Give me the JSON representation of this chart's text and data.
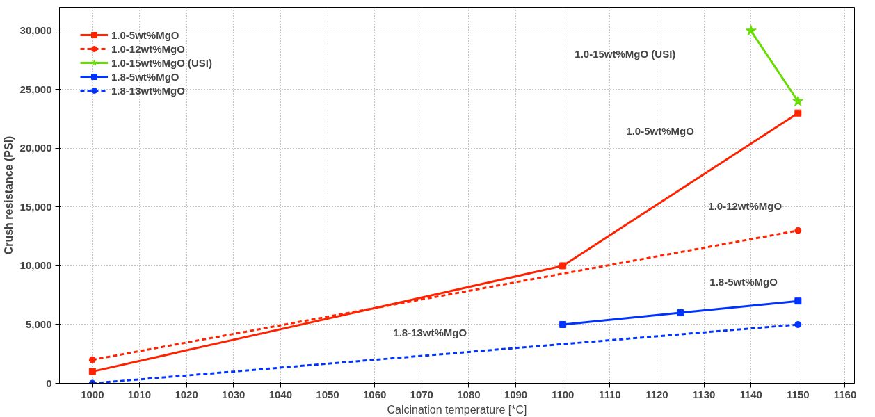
{
  "chart_data": {
    "type": "line",
    "xlabel": "Calcination temperature [*C]",
    "ylabel": "Crush resistance (PSI)",
    "xlim": [
      993,
      1162
    ],
    "ylim": [
      0,
      32000
    ],
    "xticks": [
      {
        "value": 1000,
        "label": "1000"
      },
      {
        "value": 1010,
        "label": "1010"
      },
      {
        "value": 1020,
        "label": "1020"
      },
      {
        "value": 1030,
        "label": "1030"
      },
      {
        "value": 1040,
        "label": "1040"
      },
      {
        "value": 1050,
        "label": "1050"
      },
      {
        "value": 1060,
        "label": "1060"
      },
      {
        "value": 1070,
        "label": "1070"
      },
      {
        "value": 1080,
        "label": "1080"
      },
      {
        "value": 1090,
        "label": "1090"
      },
      {
        "value": 1100,
        "label": "1100"
      },
      {
        "value": 1110,
        "label": "1110"
      },
      {
        "value": 1120,
        "label": "1120"
      },
      {
        "value": 1130,
        "label": "1130"
      },
      {
        "value": 1140,
        "label": "1140"
      },
      {
        "value": 1150,
        "label": "1150"
      },
      {
        "value": 1160,
        "label": "1160"
      }
    ],
    "yticks": [
      {
        "value": 0,
        "label": "0"
      },
      {
        "value": 5000,
        "label": "5,000"
      },
      {
        "value": 10000,
        "label": "10,000"
      },
      {
        "value": 15000,
        "label": "15,000"
      },
      {
        "value": 20000,
        "label": "20,000"
      },
      {
        "value": 25000,
        "label": "25,000"
      },
      {
        "value": 30000,
        "label": "30,000"
      }
    ],
    "grid": true,
    "legend": "top left",
    "series": [
      {
        "name": "1.0-5wt%MgO",
        "color": "#ff2200",
        "x": [
          1000,
          1100,
          1150
        ],
        "values": [
          1000,
          10000,
          23000
        ],
        "marker": "square",
        "line_style": "solid"
      },
      {
        "name": "1.0-12wt%MgO",
        "color": "#ff2200",
        "x": [
          1000,
          1150
        ],
        "values": [
          2000,
          13000
        ],
        "marker": "circle",
        "line_style": "dashed"
      },
      {
        "name": "1.0-15wt%MgO (USI)",
        "color": "#66dd00",
        "x": [
          1140,
          1150
        ],
        "values": [
          30000,
          24000
        ],
        "marker": "star",
        "line_style": "solid"
      },
      {
        "name": "1.8-5wt%MgO",
        "color": "#0033ff",
        "x": [
          1100,
          1125,
          1150
        ],
        "values": [
          5000,
          6000,
          7000
        ],
        "marker": "square",
        "line_style": "solid"
      },
      {
        "name": "1.8-13wt%MgO",
        "color": "#0033ff",
        "x": [
          1000,
          1150
        ],
        "values": [
          0,
          5000
        ],
        "marker": "circle",
        "line_style": "dashed"
      }
    ],
    "annotations": [
      "1.0-5wt%MgO",
      "1.0-12wt%MgO",
      "1.0-15wt%MgO (USI)",
      "1.8-5wt%MgO",
      "1.8-13wt%MgO"
    ]
  }
}
